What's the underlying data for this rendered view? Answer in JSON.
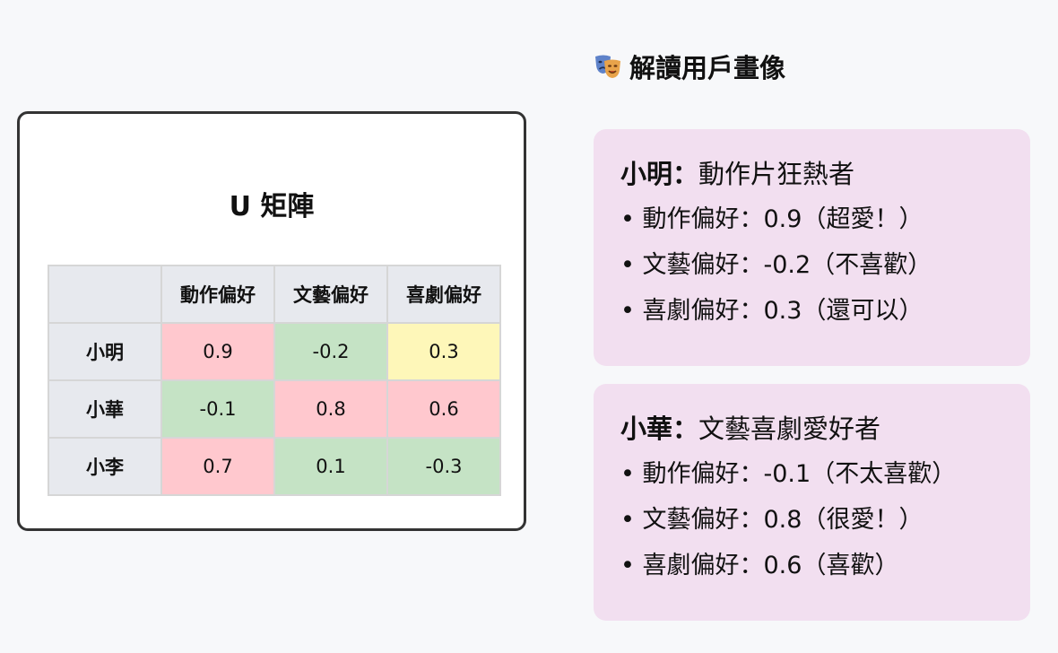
{
  "matrix": {
    "title": "U 矩陣",
    "columns": [
      "動作偏好",
      "文藝偏好",
      "喜劇偏好"
    ],
    "rows": [
      {
        "name": "小明",
        "values": [
          "0.9",
          "-0.2",
          "0.3"
        ]
      },
      {
        "name": "小華",
        "values": [
          "-0.1",
          "0.8",
          "0.6"
        ]
      },
      {
        "name": "小李",
        "values": [
          "0.7",
          "0.1",
          "-0.3"
        ]
      }
    ],
    "colors": {
      "high": "#ffc8ce",
      "low": "#c5e3c5",
      "mid": "#fef7b9"
    }
  },
  "interpretation": {
    "heading": "解讀用戶畫像",
    "icon": "performing-arts-masks-icon",
    "personas": [
      {
        "name": "小明",
        "separator": "：",
        "label": "動作片狂熱者",
        "lines": [
          "• 動作偏好：0.9（超愛！）",
          "• 文藝偏好：-0.2（不喜歡）",
          "• 喜劇偏好：0.3（還可以）"
        ]
      },
      {
        "name": "小華",
        "separator": "：",
        "label": "文藝喜劇愛好者",
        "lines": [
          "• 動作偏好：-0.1（不太喜歡）",
          "• 文藝偏好：0.8（很愛！）",
          "• 喜劇偏好：0.6（喜歡）"
        ]
      }
    ]
  }
}
